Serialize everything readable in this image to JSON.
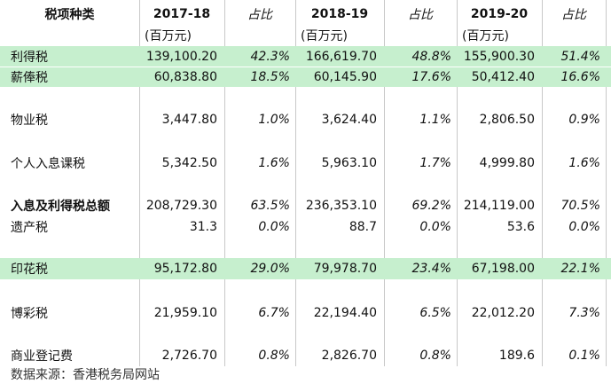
{
  "table": {
    "header": {
      "category": "税项种类",
      "y1": "2017-18",
      "share1": "占比",
      "y2": "2018-19",
      "share2": "占比",
      "y3": "2019-20",
      "share3": "占比"
    },
    "unit": "(百万元)",
    "rows": [
      {
        "name": "利得税",
        "v1": "139,100.20",
        "p1": "42.3%",
        "v2": "166,619.70",
        "p2": "48.8%",
        "v3": "155,900.30",
        "p3": "51.4%"
      },
      {
        "name": "薪俸税",
        "v1": "60,838.80",
        "p1": "18.5%",
        "v2": "60,145.90",
        "p2": "17.6%",
        "v3": "50,412.40",
        "p3": "16.6%"
      },
      {
        "name": "物业税",
        "v1": "3,447.80",
        "p1": "1.0%",
        "v2": "3,624.40",
        "p2": "1.1%",
        "v3": "2,806.50",
        "p3": "0.9%"
      },
      {
        "name": "个人入息课税",
        "v1": "5,342.50",
        "p1": "1.6%",
        "v2": "5,963.10",
        "p2": "1.7%",
        "v3": "4,999.80",
        "p3": "1.6%"
      },
      {
        "name": "入息及利得税总额",
        "v1": "208,729.30",
        "p1": "63.5%",
        "v2": "236,353.10",
        "p2": "69.2%",
        "v3": "214,119.00",
        "p3": "70.5%"
      },
      {
        "name": "遗产税",
        "v1": "31.3",
        "p1": "0.0%",
        "v2": "88.7",
        "p2": "0.0%",
        "v3": "53.6",
        "p3": "0.0%"
      },
      {
        "name": "印花税",
        "v1": "95,172.80",
        "p1": "29.0%",
        "v2": "79,978.70",
        "p2": "23.4%",
        "v3": "67,198.00",
        "p3": "22.1%"
      },
      {
        "name": "博彩税",
        "v1": "21,959.10",
        "p1": "6.7%",
        "v2": "22,194.40",
        "p2": "6.5%",
        "v3": "22,012.20",
        "p3": "7.3%"
      },
      {
        "name": "商业登记费",
        "v1": "2,726.70",
        "p1": "0.8%",
        "v2": "2,826.70",
        "p2": "0.8%",
        "v3": "189.6",
        "p3": "0.1%"
      }
    ]
  },
  "source": "数据来源：香港税务局网站"
}
